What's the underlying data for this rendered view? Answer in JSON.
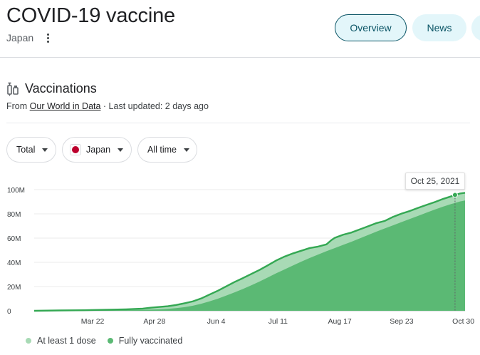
{
  "header": {
    "title": "COVID-19 vaccine",
    "subtitle": "Japan"
  },
  "tabs": [
    {
      "label": "Overview",
      "active": true
    },
    {
      "label": "News",
      "active": false
    }
  ],
  "section": {
    "title": "Vaccinations",
    "source_prefix": "From ",
    "source_link": "Our World in Data",
    "updated": " · Last updated: 2 days ago"
  },
  "filters": {
    "total": "Total",
    "country": "Japan",
    "time": "All time"
  },
  "colors": {
    "accent": "#0b5566",
    "tab_bg": "#e3f6fa",
    "at_least_one": "#a8dab5",
    "fully": "#5bb974",
    "line": "#34a853",
    "flag_red": "#bc002d"
  },
  "chart_data": {
    "type": "area",
    "tooltip": "Oct 25, 2021",
    "y_ticks": [
      "0",
      "20M",
      "40M",
      "60M",
      "80M",
      "100M"
    ],
    "y_tick_values": [
      0,
      20,
      40,
      60,
      80,
      100
    ],
    "x_ticks": [
      "Mar 22",
      "Apr 28",
      "Jun 4",
      "Jul 11",
      "Aug 17",
      "Sep 23",
      "Oct 30"
    ],
    "x_tick_days": [
      80,
      117,
      154,
      191,
      228,
      265,
      302
    ],
    "ylim": [
      0,
      100
    ],
    "xlim": [
      45,
      303
    ],
    "unit": "millions",
    "highlight_day": 297,
    "series": [
      {
        "name": "At least 1 dose",
        "days": [
          45,
          60,
          75,
          90,
          100,
          110,
          115,
          120,
          125,
          130,
          135,
          140,
          145,
          150,
          155,
          160,
          165,
          170,
          175,
          180,
          185,
          190,
          195,
          200,
          205,
          210,
          215,
          220,
          223,
          225,
          230,
          235,
          240,
          245,
          250,
          255,
          260,
          265,
          270,
          275,
          280,
          285,
          290,
          295,
          297,
          300,
          303
        ],
        "values": [
          0,
          0.3,
          0.5,
          0.9,
          1.2,
          1.8,
          2.6,
          3.2,
          3.8,
          4.8,
          6.2,
          7.8,
          10.2,
          13.4,
          16.6,
          20.2,
          23.8,
          27.0,
          30.4,
          33.8,
          37.6,
          41.6,
          44.8,
          47.4,
          49.6,
          51.8,
          53.0,
          54.8,
          58.4,
          60.2,
          62.8,
          64.6,
          67.2,
          69.8,
          72.4,
          74.2,
          77.6,
          80.2,
          82.4,
          85.0,
          87.4,
          89.8,
          92.4,
          94.6,
          95.6,
          96.8,
          97.4
        ]
      },
      {
        "name": "Fully vaccinated",
        "days": [
          45,
          60,
          75,
          90,
          100,
          110,
          115,
          120,
          125,
          130,
          135,
          140,
          145,
          150,
          155,
          160,
          165,
          170,
          175,
          180,
          185,
          190,
          195,
          200,
          205,
          210,
          215,
          220,
          225,
          230,
          235,
          240,
          245,
          250,
          255,
          260,
          265,
          270,
          275,
          280,
          285,
          290,
          295,
          300,
          303
        ],
        "values": [
          0,
          0.1,
          0.2,
          0.4,
          0.6,
          0.8,
          1.0,
          1.2,
          1.6,
          2.2,
          3.0,
          4.2,
          5.8,
          7.8,
          10.0,
          12.6,
          15.2,
          18.0,
          21.0,
          24.2,
          27.6,
          31.0,
          34.2,
          37.4,
          40.6,
          43.6,
          46.4,
          49.2,
          51.8,
          54.4,
          57.0,
          59.8,
          62.6,
          65.4,
          68.0,
          70.6,
          73.2,
          75.8,
          78.4,
          81.0,
          83.6,
          86.0,
          88.2,
          90.2,
          91.0
        ]
      }
    ]
  }
}
